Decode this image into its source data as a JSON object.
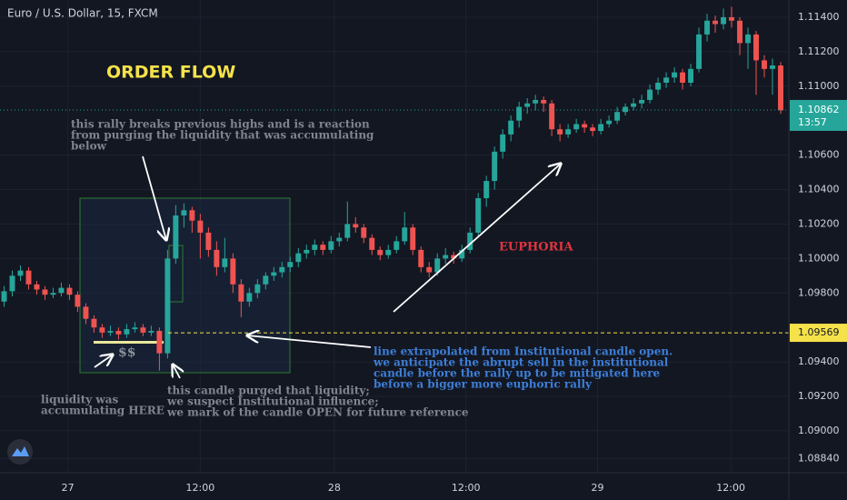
{
  "chart_data": {
    "type": "candlestick",
    "title": "Euro / U.S. Dollar, 15, FXCM",
    "up_color": "#26a69a",
    "down_color": "#ef5350",
    "grid": true,
    "xlim": [
      -0.5,
      96
    ],
    "xticks": [
      {
        "value": 7.8,
        "label": "27"
      },
      {
        "value": 24.0,
        "label": "12:00"
      },
      {
        "value": 40.4,
        "label": "28"
      },
      {
        "value": 56.5,
        "label": "12:00"
      },
      {
        "value": 72.6,
        "label": "29"
      },
      {
        "value": 88.9,
        "label": "12:00"
      }
    ],
    "ylim": [
      1.08757,
      1.115
    ],
    "yticks": [
      {
        "value": 1.114,
        "label": "1.11400"
      },
      {
        "value": 1.112,
        "label": "1.11200"
      },
      {
        "value": 1.11,
        "label": "1.11000"
      },
      {
        "value": 1.106,
        "label": "1.10600"
      },
      {
        "value": 1.104,
        "label": "1.10400"
      },
      {
        "value": 1.102,
        "label": "1.10200"
      },
      {
        "value": 1.1,
        "label": "1.10000"
      },
      {
        "value": 1.098,
        "label": "1.09800"
      },
      {
        "value": 1.094,
        "label": "1.09400"
      },
      {
        "value": 1.092,
        "label": "1.09200"
      },
      {
        "value": 1.09,
        "label": "1.09000"
      },
      {
        "value": 1.0884,
        "label": "1.08840"
      }
    ],
    "current_price": {
      "value": 1.10862,
      "label": "1.10862",
      "countdown": "13:57"
    },
    "level_line": {
      "value": 1.09569,
      "label": "1.09569"
    },
    "candles": [
      [
        1.0975,
        1.0984,
        1.0972,
        1.0981
      ],
      [
        1.0981,
        1.0993,
        1.0978,
        1.099
      ],
      [
        1.099,
        1.0996,
        1.0987,
        1.0993
      ],
      [
        1.0993,
        1.0995,
        1.0982,
        1.0985
      ],
      [
        1.0985,
        1.0987,
        1.0979,
        1.0982
      ],
      [
        1.0982,
        1.0984,
        1.0976,
        1.0979
      ],
      [
        1.0979,
        1.0983,
        1.0977,
        1.098
      ],
      [
        1.098,
        1.0986,
        1.0978,
        1.0983
      ],
      [
        1.0983,
        1.0985,
        1.0976,
        1.0979
      ],
      [
        1.0979,
        1.0981,
        1.0969,
        1.0972
      ],
      [
        1.0972,
        1.0974,
        1.0962,
        1.0965
      ],
      [
        1.0965,
        1.0967,
        1.0957,
        1.096
      ],
      [
        1.096,
        1.0962,
        1.0954,
        1.0957
      ],
      [
        1.0957,
        1.0961,
        1.0955,
        1.0958
      ],
      [
        1.0958,
        1.096,
        1.0953,
        1.0956
      ],
      [
        1.0956,
        1.0962,
        1.0954,
        1.0959
      ],
      [
        1.0959,
        1.0963,
        1.0957,
        1.096
      ],
      [
        1.096,
        1.0962,
        1.0955,
        1.0957
      ],
      [
        1.0957,
        1.0961,
        1.0955,
        1.0958
      ],
      [
        1.0958,
        1.096,
        1.0935,
        1.0945
      ],
      [
        1.0945,
        1.1005,
        1.0942,
        1.1
      ],
      [
        1.1,
        1.1031,
        1.0997,
        1.1025
      ],
      [
        1.1025,
        1.1032,
        1.1018,
        1.1028
      ],
      [
        1.1028,
        1.103,
        1.1015,
        1.1022
      ],
      [
        1.1022,
        1.1026,
        1.1,
        1.1015
      ],
      [
        1.1015,
        1.1018,
        1.1001,
        1.1005
      ],
      [
        1.1005,
        1.101,
        1.099,
        1.0995
      ],
      [
        1.0995,
        1.1012,
        1.0992,
        1.1
      ],
      [
        1.1,
        1.1003,
        1.098,
        1.0985
      ],
      [
        1.0985,
        1.0988,
        1.0966,
        1.0975
      ],
      [
        1.0975,
        1.0983,
        1.0972,
        1.098
      ],
      [
        1.098,
        1.0988,
        1.0977,
        1.0985
      ],
      [
        1.0985,
        1.0992,
        1.0982,
        1.099
      ],
      [
        1.099,
        1.0995,
        1.0987,
        1.0992
      ],
      [
        1.0992,
        1.0998,
        1.0989,
        1.0995
      ],
      [
        1.0995,
        1.1001,
        1.0992,
        1.0998
      ],
      [
        1.0998,
        1.1006,
        1.0995,
        1.1003
      ],
      [
        1.1003,
        1.1008,
        1.1,
        1.1005
      ],
      [
        1.1005,
        1.1011,
        1.1002,
        1.1008
      ],
      [
        1.1008,
        1.101,
        1.1002,
        1.1005
      ],
      [
        1.1005,
        1.1013,
        1.1003,
        1.101
      ],
      [
        1.101,
        1.1015,
        1.1007,
        1.1012
      ],
      [
        1.1012,
        1.1033,
        1.101,
        1.102
      ],
      [
        1.102,
        1.1024,
        1.1015,
        1.1018
      ],
      [
        1.1018,
        1.102,
        1.1009,
        1.1012
      ],
      [
        1.1012,
        1.1014,
        1.1002,
        1.1005
      ],
      [
        1.1005,
        1.1007,
        1.0999,
        1.1002
      ],
      [
        1.1002,
        1.1008,
        1.1,
        1.1005
      ],
      [
        1.1005,
        1.1013,
        1.1003,
        1.101
      ],
      [
        1.101,
        1.1027,
        1.1008,
        1.1018
      ],
      [
        1.1018,
        1.102,
        1.1002,
        1.1005
      ],
      [
        1.1005,
        1.1007,
        1.0992,
        1.0995
      ],
      [
        1.0995,
        1.0998,
        1.0989,
        1.0992
      ],
      [
        1.0992,
        1.1003,
        1.099,
        1.1
      ],
      [
        1.1,
        1.1006,
        1.0997,
        1.1002
      ],
      [
        1.1002,
        1.1004,
        1.0997,
        1.1
      ],
      [
        1.1,
        1.1008,
        1.0998,
        1.1005
      ],
      [
        1.1005,
        1.1018,
        1.1003,
        1.1015
      ],
      [
        1.1015,
        1.1038,
        1.1012,
        1.1035
      ],
      [
        1.1035,
        1.1048,
        1.103,
        1.1045
      ],
      [
        1.1045,
        1.1065,
        1.104,
        1.1062
      ],
      [
        1.1062,
        1.1075,
        1.1058,
        1.1072
      ],
      [
        1.1072,
        1.1083,
        1.1068,
        1.108
      ],
      [
        1.108,
        1.1091,
        1.1076,
        1.1088
      ],
      [
        1.1088,
        1.1093,
        1.1084,
        1.109
      ],
      [
        1.109,
        1.1095,
        1.1086,
        1.1092
      ],
      [
        1.1092,
        1.1094,
        1.1085,
        1.109
      ],
      [
        1.109,
        1.1092,
        1.1071,
        1.1075
      ],
      [
        1.1075,
        1.1078,
        1.1068,
        1.1072
      ],
      [
        1.1072,
        1.1078,
        1.107,
        1.1075
      ],
      [
        1.1075,
        1.1081,
        1.1073,
        1.1078
      ],
      [
        1.1078,
        1.108,
        1.1073,
        1.1076
      ],
      [
        1.1076,
        1.1078,
        1.1071,
        1.1074
      ],
      [
        1.1074,
        1.1081,
        1.1072,
        1.1078
      ],
      [
        1.1078,
        1.1083,
        1.1076,
        1.108
      ],
      [
        1.108,
        1.1088,
        1.1078,
        1.1085
      ],
      [
        1.1085,
        1.109,
        1.1083,
        1.1088
      ],
      [
        1.1088,
        1.1093,
        1.1086,
        1.109
      ],
      [
        1.109,
        1.1095,
        1.1087,
        1.1092
      ],
      [
        1.1092,
        1.1101,
        1.109,
        1.1098
      ],
      [
        1.1098,
        1.1105,
        1.1095,
        1.1102
      ],
      [
        1.1102,
        1.1108,
        1.1099,
        1.1105
      ],
      [
        1.1105,
        1.1111,
        1.1102,
        1.1108
      ],
      [
        1.1108,
        1.111,
        1.1098,
        1.1102
      ],
      [
        1.1102,
        1.1113,
        1.11,
        1.111
      ],
      [
        1.111,
        1.1134,
        1.1108,
        1.113
      ],
      [
        1.113,
        1.1142,
        1.1126,
        1.1138
      ],
      [
        1.1138,
        1.1141,
        1.1131,
        1.1136
      ],
      [
        1.1136,
        1.1145,
        1.1133,
        1.114
      ],
      [
        1.114,
        1.1146,
        1.1134,
        1.1138
      ],
      [
        1.1138,
        1.114,
        1.1118,
        1.1125
      ],
      [
        1.1125,
        1.1134,
        1.111,
        1.113
      ],
      [
        1.113,
        1.1132,
        1.1095,
        1.1115
      ],
      [
        1.1115,
        1.1118,
        1.1105,
        1.111
      ],
      [
        1.111,
        1.1116,
        1.1095,
        1.1112
      ],
      [
        1.1112,
        1.1114,
        1.1084,
        1.1086
      ]
    ],
    "annotations": {
      "heading": "ORDER FLOW",
      "rally_note": [
        "this rally breaks previous highs and is a reaction",
        "from purging the liquidity that was accumulating",
        "below"
      ],
      "euphoria": "EUPHORIA",
      "dollars": "$$",
      "liquidity_note": [
        "liquidity was",
        "accumulating HERE"
      ],
      "candle_note": [
        "this candle purged that liquidity;",
        "we suspect Institutional influence;",
        "we mark of the candle OPEN for future reference"
      ],
      "line_note": [
        "line extrapolated from Institutional candle open.",
        "we anticipate the abrupt sell in the institutional",
        "candle before the rally up to be mitigated here",
        "before a bigger more euphoric rally"
      ]
    }
  }
}
